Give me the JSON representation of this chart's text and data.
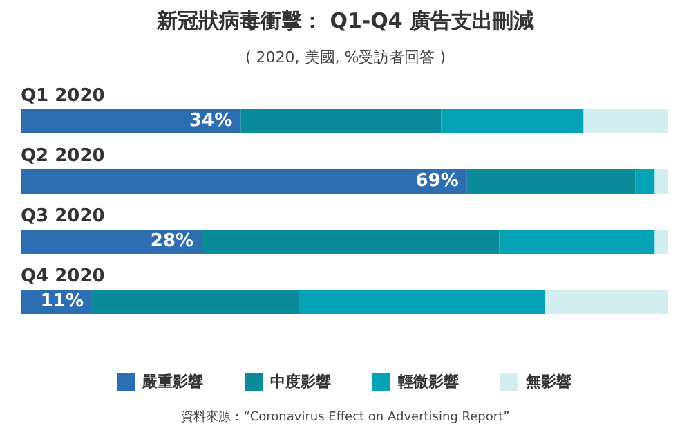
{
  "chart_data": {
    "type": "bar",
    "orientation": "horizontal",
    "stacked": true,
    "title": "新冠狀病毒衝擊： Q1-Q4 廣告支出刪減",
    "subtitle": "( 2020, 美國, %受訪者回答 )",
    "categories": [
      "Q1 2020",
      "Q2 2020",
      "Q3 2020",
      "Q4 2020"
    ],
    "xlim": [
      0,
      100
    ],
    "legend": "bottom",
    "series": [
      {
        "name": "嚴重影響",
        "color": "#2d6db2",
        "values": [
          34,
          69,
          28,
          11
        ],
        "value_labels": [
          "34%",
          "69%",
          "28%",
          "11%"
        ]
      },
      {
        "name": "中度影響",
        "color": "#0b8a99",
        "values": [
          31,
          26,
          46,
          32
        ]
      },
      {
        "name": "輕微影響",
        "color": "#06a3b7",
        "values": [
          22,
          3,
          24,
          38
        ]
      },
      {
        "name": "無影響",
        "color": "#d3eef1",
        "values": [
          13,
          2,
          2,
          19
        ]
      }
    ],
    "annotations": [
      "資料來源：“Coronavirus Effect on Advertising Report”"
    ]
  }
}
